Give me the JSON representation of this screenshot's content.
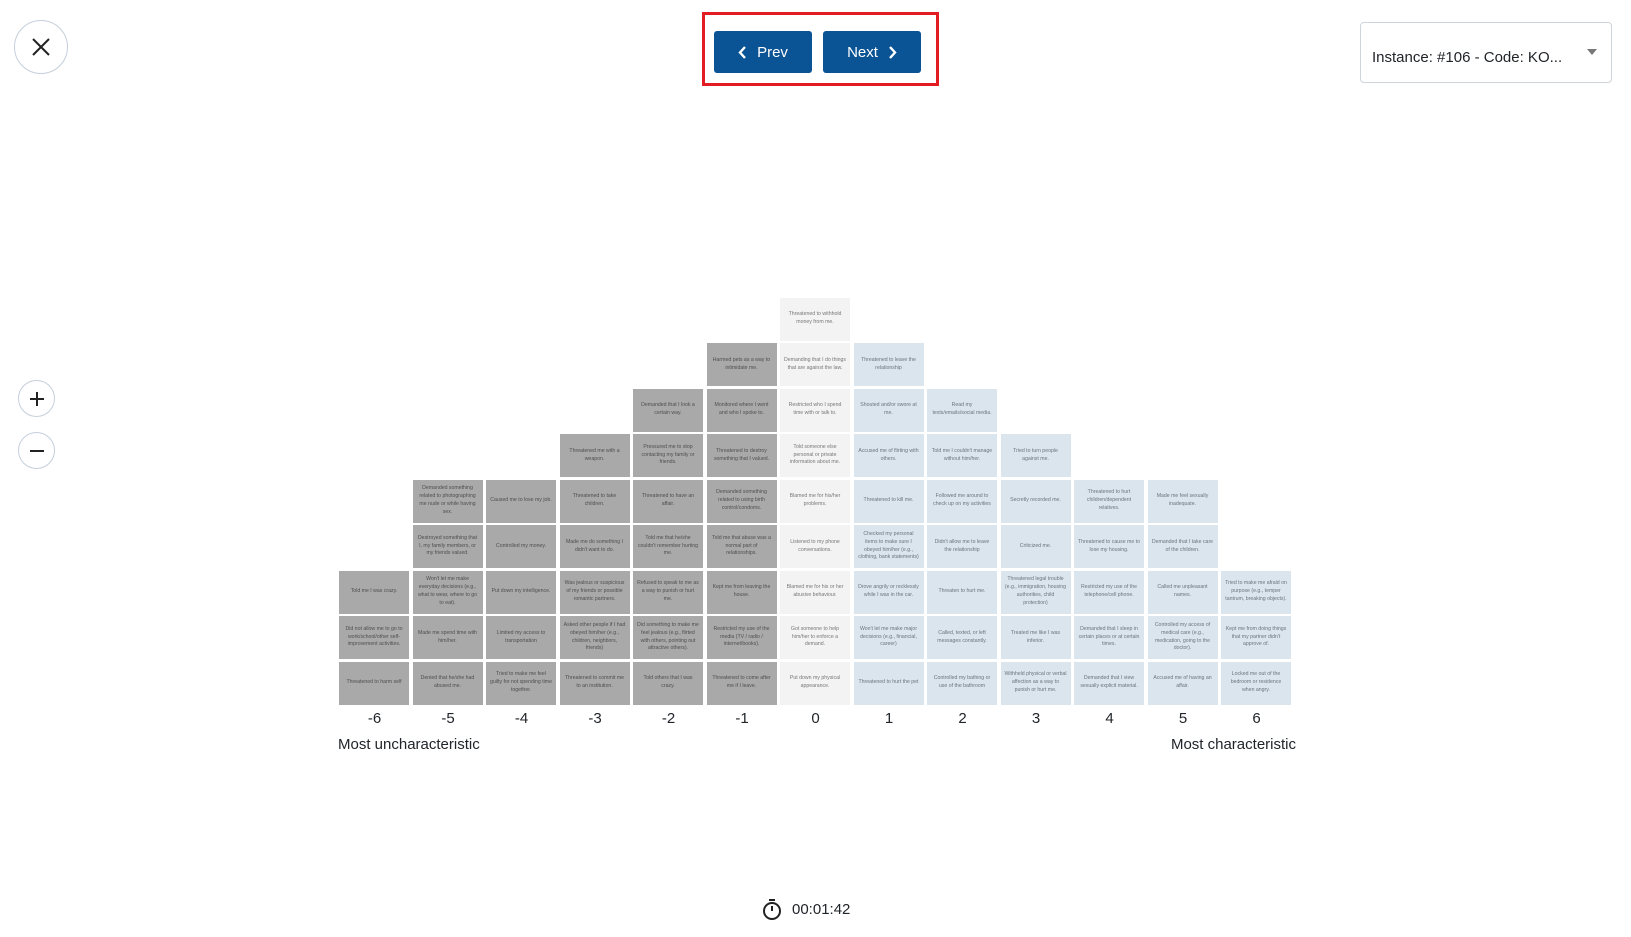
{
  "toolbar": {
    "close_icon": "close-icon",
    "prev_label": "Prev",
    "next_label": "Next",
    "instance_select_value": "Instance: #106 - Code: KO...",
    "zoom_in_icon": "plus-icon",
    "zoom_out_icon": "minus-icon"
  },
  "scale": {
    "left_label": "Most uncharacteristic",
    "right_label": "Most characteristic"
  },
  "timer": {
    "icon": "stopwatch-icon",
    "value": "00:01:42"
  },
  "colors": {
    "negative": "#a9a9a9",
    "neutral": "#f3f3f3",
    "positive": "#dae5ee",
    "button": "#0a5394",
    "highlight": "#e31b23"
  },
  "columns": [
    {
      "label": "-6",
      "cells": [
        "Told me I was crazy.",
        "Did not allow me to go to work/school/other self-improvement activities.",
        "Threatened to harm self"
      ]
    },
    {
      "label": "-5",
      "cells": [
        "Demanded something related to photographing me nude or while having sex.",
        "Destroyed something that I, my family members, or my friends valued.",
        "Won't let me make everyday decisions (e.g., what to wear, where to go to eat).",
        "Made me spend time with him/her.",
        "Denied that he/she had abused me."
      ]
    },
    {
      "label": "-4",
      "cells": [
        "Caused me to lose my job.",
        "Controlled my money.",
        "Put down my intelligence.",
        "Limited my access to transportation",
        "Tried to make me feel guilty for not spending time together."
      ]
    },
    {
      "label": "-3",
      "cells": [
        "Threatened me with a weapon.",
        "Threatened to take children.",
        "Made me do something I didn't want to do.",
        "Was jealous or suspicious of my friends or possible romantic partners.",
        "Asked other people if I had obeyed him/her (e.g., children, neighbors, friends)",
        "Threatened to commit me to an institution."
      ]
    },
    {
      "label": "-2",
      "cells": [
        "Demanded that I look a certain way.",
        "Pressured me to stop contacting my family or friends.",
        "Threatened to have an affair.",
        "Told me that he/she couldn't remember hurting me.",
        "Refused to speak to me as a way to punish or hurt me.",
        "Did something to make me feel jealous (e.g., flirted with others, pointing out attractive others).",
        "Told others that I was crazy."
      ]
    },
    {
      "label": "-1",
      "cells": [
        "Harmed pets as a way to intimidate me.",
        "Monitored where I went and who I spoke to.",
        "Threatened to destroy something that I valued.",
        "Demanded something related to using birth control/condoms.",
        "Told me that abuse was a normal part of relationships.",
        "Kept me from leaving the house.",
        "Restricted my use of the media (TV / radio / internet/books).",
        "Threatened to come after me if I leave."
      ]
    },
    {
      "label": "0",
      "cells": [
        "Threatened to withhold money from me.",
        "Demanding that I do things that are against the law.",
        "Restricted who I spend time with or talk to.",
        "Told someone else personal or private information about me.",
        "Blamed me for his/her problems.",
        "Listened to my phone conversations.",
        "Blamed me for his or her abusive behaviour.",
        "Got someone to help him/her to enforce a demand.",
        "Put down my physical appearance."
      ]
    },
    {
      "label": "1",
      "cells": [
        "Threatened to leave the relationship",
        "Shouted and/or swore at me.",
        "Accused me of flirting with others.",
        "Threatened to kill me.",
        "Checked my personal items to make sure I obeyed him/her (e.g., clothing, bank statements)",
        "Drove angrily or recklessly while I was in the car.",
        "Won't let me make major decisions (e.g., financial, career)",
        "Threatened to hurt the pet"
      ]
    },
    {
      "label": "2",
      "cells": [
        "Read my texts/emails/social media.",
        "Told me I couldn't manage without him/her.",
        "Followed me around to check up on my activities",
        "Didn't allow me to leave the relationship",
        "Threaten to hurt me.",
        "Called, texted, or left messages constantly.",
        "Controlled my bathing or use of the bathroom"
      ]
    },
    {
      "label": "3",
      "cells": [
        "Tried to turn people against me.",
        "Secretly recorded me.",
        "Criticized me.",
        "Threatened legal trouble (e.g., immigration, housing authorities, child protection)",
        "Treated me like I was inferior.",
        "Withheld physical or verbal affection as a way to punish or hurt me."
      ]
    },
    {
      "label": "4",
      "cells": [
        "Threatened to hurt children/dependent relatives.",
        "Threatened to cause me to lose my housing.",
        "Restricted my use of the telephone/cell phone.",
        "Demanded that I sleep in certain places or at certain times.",
        "Demanded that I view sexually explicit material."
      ]
    },
    {
      "label": "5",
      "cells": [
        "Made me feel sexually inadequate.",
        "Demanded that I take care of the children.",
        "Called me unpleasant names.",
        "Controlled my access of medical care (e.g., medication, going to the doctor).",
        "Accused me of having an affair."
      ]
    },
    {
      "label": "6",
      "cells": [
        "Tried to make me afraid on purpose (e.g., temper tantrum, breaking objects).",
        "Kept me from doing things that my partner didn't approve of.",
        "Locked me out of the bedroom or residence when angry."
      ]
    }
  ]
}
